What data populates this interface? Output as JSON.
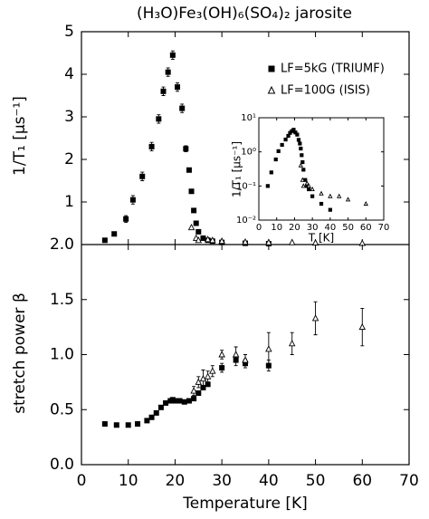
{
  "chart_data": [
    {
      "type": "scatter",
      "title": "(H₃O)Fe₃(OH)₆(SO₄)₂ jarosite",
      "ylabel": "1/T₁ [μs⁻¹]",
      "ylim": [
        0,
        5
      ],
      "yticks": [
        1,
        2,
        3,
        4,
        5
      ],
      "series": [
        {
          "name": "LF=5kG (TRIUMF)",
          "marker": "square",
          "color": "#000000",
          "x": [
            5,
            7,
            9.5,
            11,
            13,
            15,
            16.5,
            17.5,
            18.5,
            19.5,
            20.5,
            21.5,
            22.3,
            23,
            23.5,
            24,
            24.5,
            25,
            26,
            27,
            28,
            30,
            35,
            40
          ],
          "values": [
            0.1,
            0.25,
            0.6,
            1.05,
            1.6,
            2.3,
            2.95,
            3.6,
            4.05,
            4.45,
            3.7,
            3.2,
            2.25,
            1.75,
            1.25,
            0.8,
            0.5,
            0.3,
            0.15,
            0.1,
            0.08,
            0.05,
            0.03,
            0.02
          ],
          "errors": [
            null,
            null,
            0.08,
            0.1,
            0.1,
            0.1,
            0.1,
            0.1,
            0.1,
            0.1,
            0.1,
            0.1,
            0.07,
            null,
            null,
            null,
            null,
            null,
            null,
            null,
            null,
            null,
            null,
            null
          ]
        },
        {
          "name": "LF=100G (ISIS)",
          "marker": "triangle",
          "color": "#000000",
          "x": [
            23.5,
            24.5,
            25,
            27,
            28,
            30,
            35,
            40,
            45,
            50,
            60
          ],
          "values": [
            0.4,
            0.15,
            0.1,
            0.12,
            0.1,
            0.08,
            0.06,
            0.05,
            0.05,
            0.04,
            0.03
          ]
        }
      ],
      "inset": {
        "xlabel": "T [K]",
        "ylabel": "1/T₁ [μs⁻¹]",
        "xlim": [
          0,
          70
        ],
        "xticks": [
          0,
          10,
          20,
          30,
          40,
          50,
          60,
          70
        ],
        "ylim": [
          0.01,
          10
        ],
        "log_y": true,
        "yticks": [
          {
            "value": 0.01,
            "label": "10⁻²"
          },
          {
            "value": 0.1,
            "label": "10⁻¹"
          },
          {
            "value": 1,
            "label": "10⁰"
          },
          {
            "value": 10,
            "label": "10¹"
          }
        ]
      }
    },
    {
      "type": "scatter",
      "xlabel": "Temperature [K]",
      "ylabel": "stretch power β",
      "xlim": [
        0,
        70
      ],
      "xticks": [
        0,
        10,
        20,
        30,
        40,
        50,
        60,
        70
      ],
      "ylim": [
        0,
        2
      ],
      "yticks": [
        {
          "value": 0,
          "label": "0.0"
        },
        {
          "value": 0.5,
          "label": "0.5"
        },
        {
          "value": 1,
          "label": "1.0"
        },
        {
          "value": 1.5,
          "label": "1.5"
        },
        {
          "value": 2,
          "label": "2.0"
        }
      ],
      "series": [
        {
          "marker": "square",
          "color": "#000000",
          "x": [
            5,
            7.5,
            10,
            12,
            14,
            15,
            16,
            17,
            18,
            19,
            19.5,
            20,
            21,
            22,
            23,
            24,
            25,
            26,
            27,
            30,
            33,
            35,
            40
          ],
          "values": [
            0.37,
            0.36,
            0.36,
            0.37,
            0.4,
            0.43,
            0.47,
            0.52,
            0.56,
            0.58,
            0.59,
            0.58,
            0.58,
            0.57,
            0.58,
            0.6,
            0.65,
            0.7,
            0.73,
            0.88,
            0.95,
            0.92,
            0.9
          ],
          "errors": [
            null,
            null,
            null,
            null,
            null,
            null,
            null,
            null,
            null,
            null,
            null,
            null,
            null,
            null,
            null,
            null,
            null,
            null,
            null,
            0.04,
            0.05,
            0.04,
            0.05
          ]
        },
        {
          "marker": "triangle",
          "color": "#000000",
          "x": [
            24,
            25,
            26,
            27,
            28,
            30,
            33,
            35,
            40,
            45,
            50,
            60
          ],
          "values": [
            0.67,
            0.75,
            0.78,
            0.8,
            0.85,
            1.0,
            1.0,
            0.95,
            1.05,
            1.1,
            1.33,
            1.25
          ],
          "errors": [
            0.04,
            0.05,
            0.08,
            0.05,
            0.05,
            0.04,
            0.07,
            0.05,
            0.15,
            0.1,
            0.15,
            0.17
          ]
        }
      ]
    }
  ]
}
